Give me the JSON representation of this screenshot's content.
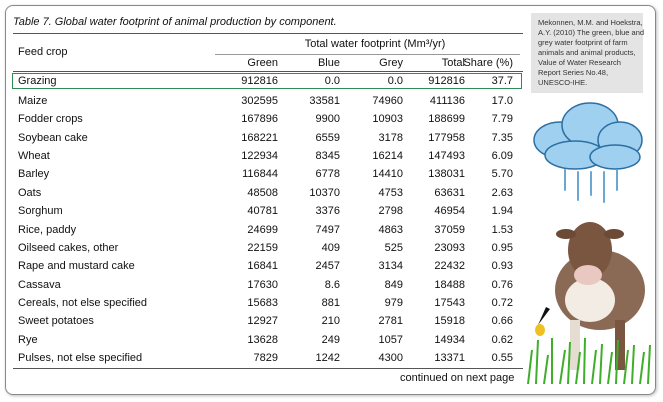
{
  "title": "Table 7. Global water footprint of animal production by component.",
  "table": {
    "row_header": "Feed crop",
    "group_header": "Total water footprint (Mm³/yr)",
    "columns": [
      "Green",
      "Blue",
      "Grey",
      "Total",
      "Share (%)"
    ],
    "rows": [
      [
        "Grazing",
        "912816",
        "0.0",
        "0.0",
        "912816",
        "37.7"
      ],
      [
        "Maize",
        "302595",
        "33581",
        "74960",
        "411136",
        "17.0"
      ],
      [
        "Fodder crops",
        "167896",
        "9900",
        "10903",
        "188699",
        "7.79"
      ],
      [
        "Soybean cake",
        "168221",
        "6559",
        "3178",
        "177958",
        "7.35"
      ],
      [
        "Wheat",
        "122934",
        "8345",
        "16214",
        "147493",
        "6.09"
      ],
      [
        "Barley",
        "116844",
        "6778",
        "14410",
        "138031",
        "5.70"
      ],
      [
        "Oats",
        "48508",
        "10370",
        "4753",
        "63631",
        "2.63"
      ],
      [
        "Sorghum",
        "40781",
        "3376",
        "2798",
        "46954",
        "1.94"
      ],
      [
        "Rice, paddy",
        "24699",
        "7497",
        "4863",
        "37059",
        "1.53"
      ],
      [
        "Oilseed cakes, other",
        "22159",
        "409",
        "525",
        "23093",
        "0.95"
      ],
      [
        "Rape and mustard cake",
        "16841",
        "2457",
        "3134",
        "22432",
        "0.93"
      ],
      [
        "Cassava",
        "17630",
        "8.6",
        "849",
        "18488",
        "0.76"
      ],
      [
        "Cereals, not else specified",
        "15683",
        "881",
        "979",
        "17543",
        "0.72"
      ],
      [
        "Sweet potatoes",
        "12927",
        "210",
        "2781",
        "15918",
        "0.66"
      ],
      [
        "Rye",
        "13628",
        "249",
        "1057",
        "14934",
        "0.62"
      ],
      [
        "Pulses, not else specified",
        "7829",
        "1242",
        "4300",
        "13371",
        "0.55"
      ]
    ],
    "footer": "continued on next page"
  },
  "citation": [
    "Mekonnen, M.M. and Hoekstra,",
    "A.Y. (2010) The green, blue and",
    "grey water footprint of farm",
    "animals and animal products,",
    "Value of Water Research",
    "Report Series No.48,",
    "UNESCO-IHE."
  ]
}
